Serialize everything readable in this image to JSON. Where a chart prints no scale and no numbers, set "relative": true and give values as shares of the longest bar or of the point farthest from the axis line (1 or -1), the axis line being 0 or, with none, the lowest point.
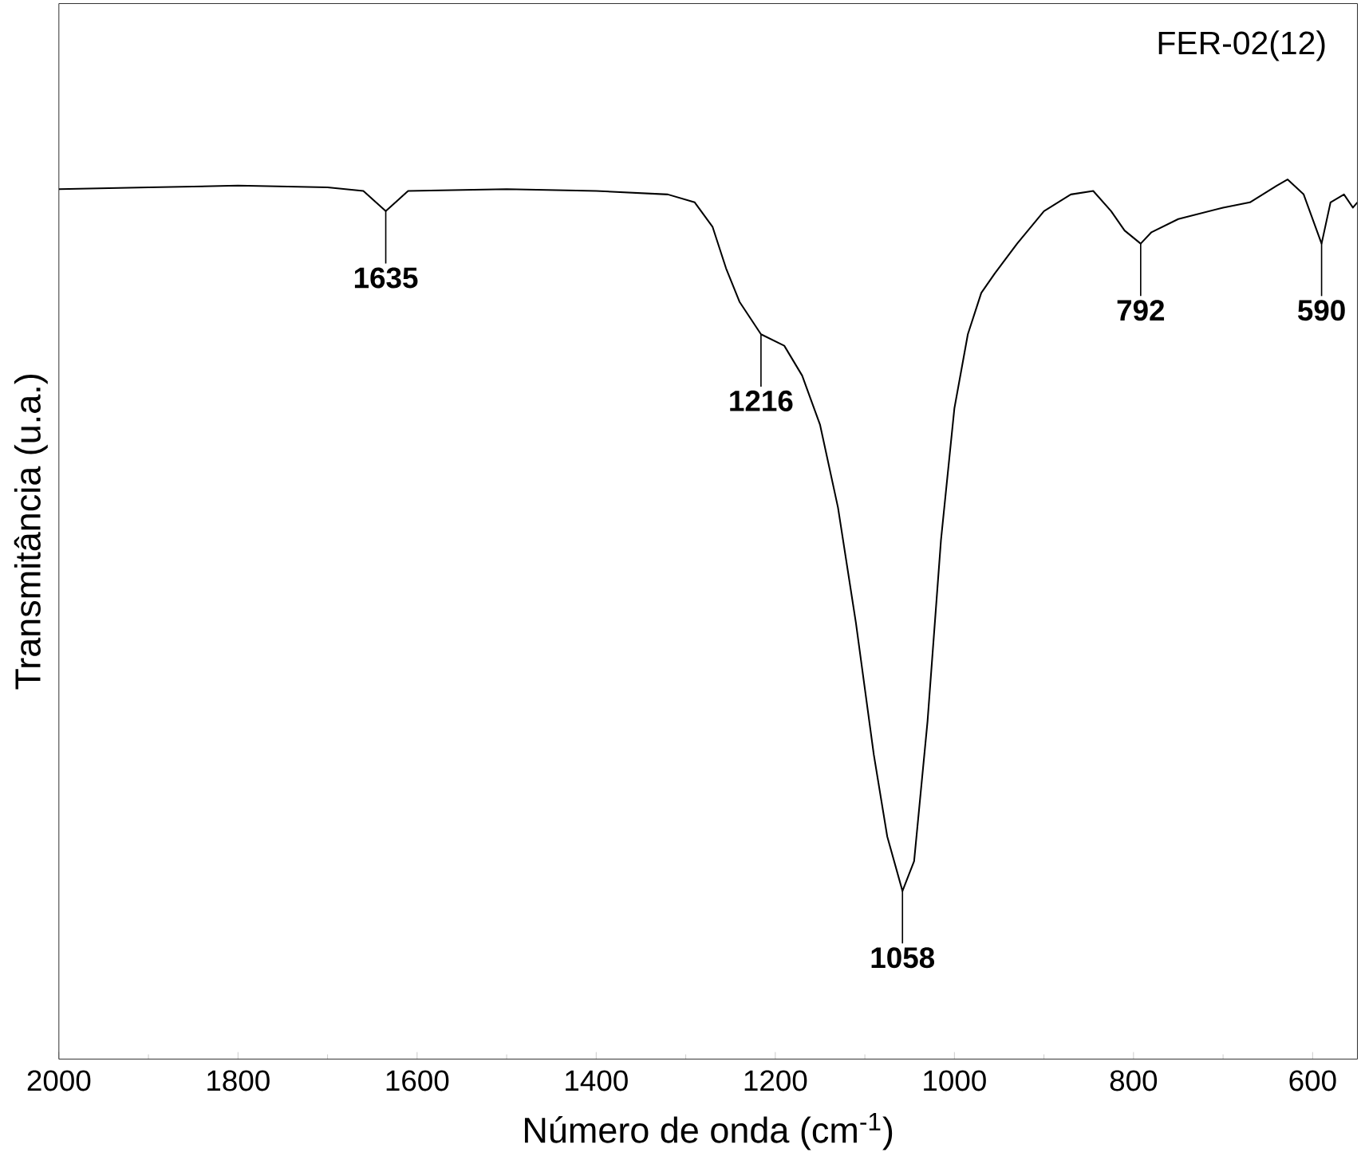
{
  "chart_data": {
    "type": "line",
    "relative": true,
    "xlabel": "Número de onda (cm$^{-1}$)",
    "ylabel": "Transmitância (u.a.)",
    "xlim": [
      2000,
      550
    ],
    "xticks": [
      2000,
      1800,
      1600,
      1400,
      1200,
      1000,
      800,
      600
    ],
    "x": [
      2000,
      1900,
      1800,
      1700,
      1660,
      1635,
      1610,
      1500,
      1400,
      1320,
      1290,
      1270,
      1255,
      1240,
      1216,
      1190,
      1170,
      1150,
      1130,
      1110,
      1090,
      1075,
      1058,
      1045,
      1030,
      1015,
      1000,
      985,
      970,
      955,
      930,
      900,
      870,
      845,
      825,
      810,
      792,
      780,
      750,
      700,
      670,
      640,
      628,
      610,
      590,
      580,
      565,
      555,
      550
    ],
    "series": [
      {
        "color": "#000000",
        "values": [
          0.989,
          0.991,
          0.993,
          0.991,
          0.987,
          0.964,
          0.987,
          0.989,
          0.987,
          0.983,
          0.974,
          0.946,
          0.899,
          0.861,
          0.824,
          0.811,
          0.777,
          0.721,
          0.627,
          0.496,
          0.346,
          0.253,
          0.191,
          0.225,
          0.384,
          0.59,
          0.74,
          0.824,
          0.871,
          0.893,
          0.927,
          0.964,
          0.983,
          0.987,
          0.964,
          0.942,
          0.927,
          0.94,
          0.955,
          0.968,
          0.974,
          0.993,
          1.0,
          0.983,
          0.927,
          0.974,
          0.983,
          0.968,
          0.974
        ]
      }
    ],
    "annotations": [
      "FER-02(12)",
      {
        "text": "1635",
        "x": 1635,
        "y": 0.964
      },
      {
        "text": "1216",
        "x": 1216,
        "y": 0.824
      },
      {
        "text": "1058",
        "x": 1058,
        "y": 0.191
      },
      {
        "text": "792",
        "x": 792,
        "y": 0.927
      },
      {
        "text": "590",
        "x": 590,
        "y": 0.927
      }
    ]
  }
}
